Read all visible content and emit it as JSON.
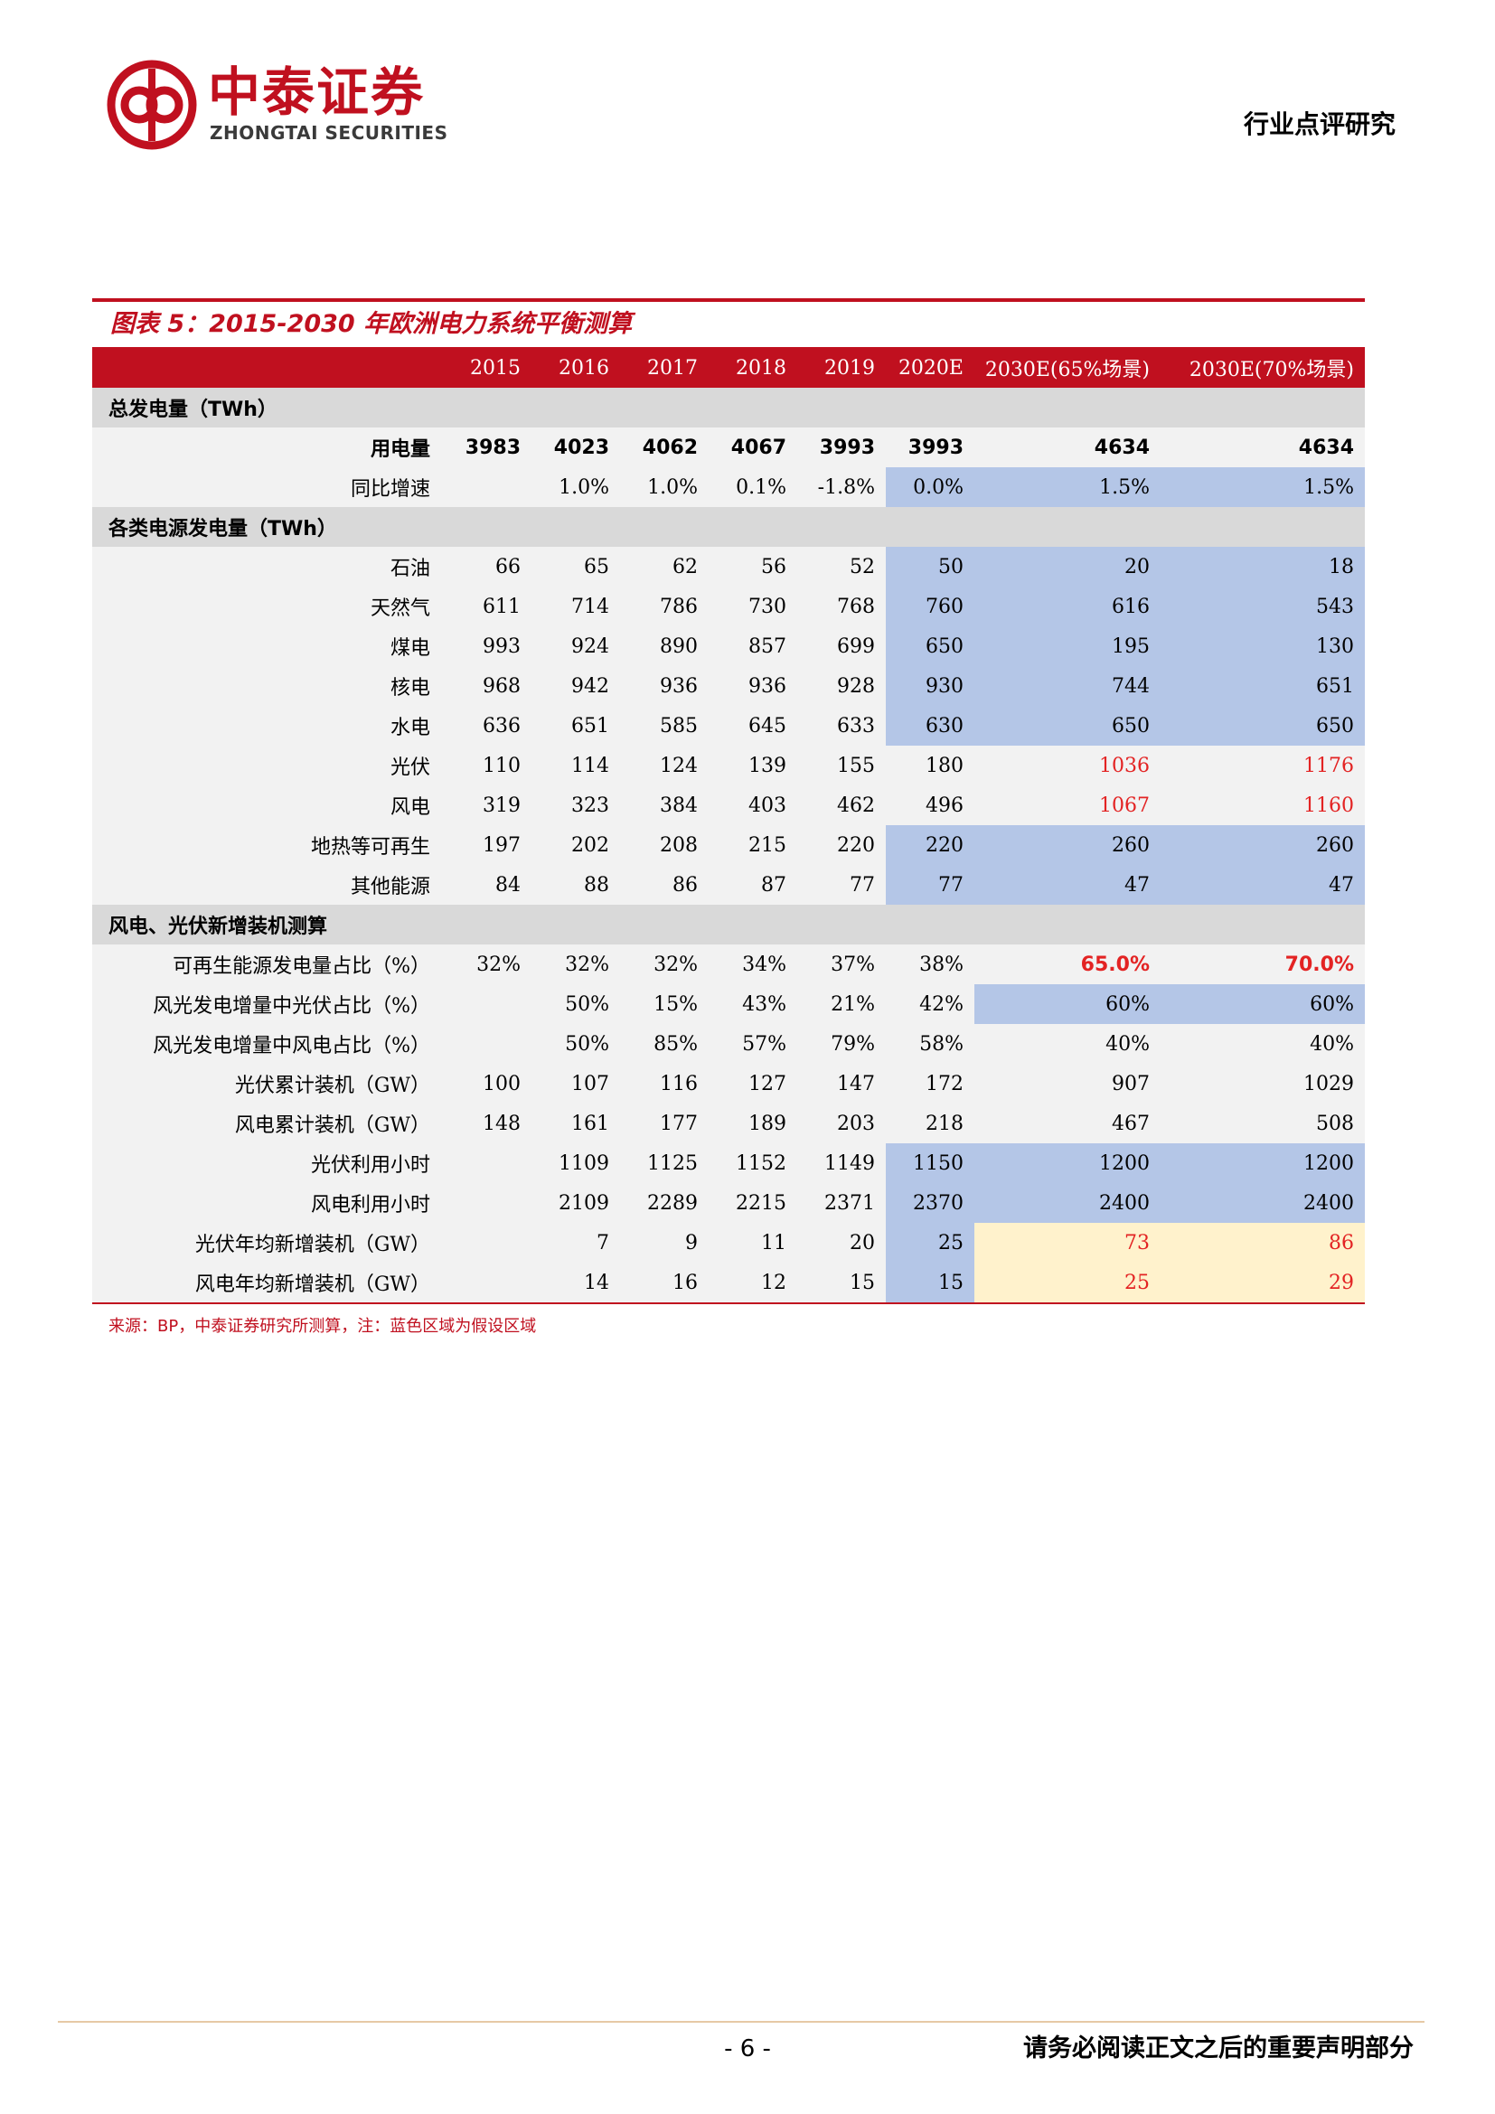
{
  "header": {
    "logo_cn": "中泰证券",
    "logo_en": "ZHONGTAI SECURITIES",
    "doc_type": "行业点评研究"
  },
  "figure": {
    "title": "图表 5：2015-2030 年欧洲电力系统平衡测算",
    "columns": [
      "2015",
      "2016",
      "2017",
      "2018",
      "2019",
      "2020E",
      "2030E(65%场景)",
      "2030E(70%场景)"
    ],
    "sections": [
      {
        "name": "总发电量（TWh）",
        "rows": [
          {
            "label": "用电量",
            "bold": true,
            "values": [
              "3983",
              "4023",
              "4062",
              "4067",
              "3993",
              "3993",
              "4634",
              "4634"
            ]
          },
          {
            "label": "同比增速",
            "values": [
              "",
              "1.0%",
              "1.0%",
              "0.1%",
              "-1.8%",
              "0.0%",
              "1.5%",
              "1.5%"
            ]
          }
        ]
      },
      {
        "name": "各类电源发电量（TWh）",
        "rows": [
          {
            "label": "石油",
            "values": [
              "66",
              "65",
              "62",
              "56",
              "52",
              "50",
              "20",
              "18"
            ]
          },
          {
            "label": "天然气",
            "values": [
              "611",
              "714",
              "786",
              "730",
              "768",
              "760",
              "616",
              "543"
            ]
          },
          {
            "label": "煤电",
            "values": [
              "993",
              "924",
              "890",
              "857",
              "699",
              "650",
              "195",
              "130"
            ]
          },
          {
            "label": "核电",
            "values": [
              "968",
              "942",
              "936",
              "936",
              "928",
              "930",
              "744",
              "651"
            ]
          },
          {
            "label": "水电",
            "values": [
              "636",
              "651",
              "585",
              "645",
              "633",
              "630",
              "650",
              "650"
            ]
          },
          {
            "label": "光伏",
            "values": [
              "110",
              "114",
              "124",
              "139",
              "155",
              "180",
              "1036",
              "1176"
            ]
          },
          {
            "label": "风电",
            "values": [
              "319",
              "323",
              "384",
              "403",
              "462",
              "496",
              "1067",
              "1160"
            ]
          },
          {
            "label": "地热等可再生",
            "values": [
              "197",
              "202",
              "208",
              "215",
              "220",
              "220",
              "260",
              "260"
            ]
          },
          {
            "label": "其他能源",
            "values": [
              "84",
              "88",
              "86",
              "87",
              "77",
              "77",
              "47",
              "47"
            ]
          }
        ]
      },
      {
        "name": "风电、光伏新增装机测算",
        "rows": [
          {
            "label": "可再生能源发电量占比（%）",
            "values": [
              "32%",
              "32%",
              "32%",
              "34%",
              "37%",
              "38%",
              "65.0%",
              "70.0%"
            ]
          },
          {
            "label": "风光发电增量中光伏占比（%）",
            "values": [
              "",
              "50%",
              "15%",
              "43%",
              "21%",
              "42%",
              "60%",
              "60%"
            ]
          },
          {
            "label": "风光发电增量中风电占比（%）",
            "values": [
              "",
              "50%",
              "85%",
              "57%",
              "79%",
              "58%",
              "40%",
              "40%"
            ]
          },
          {
            "label": "光伏累计装机（GW）",
            "values": [
              "100",
              "107",
              "116",
              "127",
              "147",
              "172",
              "907",
              "1029"
            ]
          },
          {
            "label": "风电累计装机（GW）",
            "values": [
              "148",
              "161",
              "177",
              "189",
              "203",
              "218",
              "467",
              "508"
            ]
          },
          {
            "label": "光伏利用小时",
            "values": [
              "",
              "1109",
              "1125",
              "1152",
              "1149",
              "1150",
              "1200",
              "1200"
            ]
          },
          {
            "label": "风电利用小时",
            "values": [
              "",
              "2109",
              "2289",
              "2215",
              "2371",
              "2370",
              "2400",
              "2400"
            ]
          },
          {
            "label": "光伏年均新增装机（GW）",
            "values": [
              "",
              "7",
              "9",
              "11",
              "20",
              "25",
              "73",
              "86"
            ]
          },
          {
            "label": "风电年均新增装机（GW）",
            "values": [
              "",
              "14",
              "16",
              "12",
              "15",
              "15",
              "25",
              "29"
            ]
          }
        ]
      }
    ],
    "source": "来源：BP，中泰证券研究所测算，注：蓝色区域为假设区域",
    "colors": {
      "header_red": "#c0101f",
      "assumption_blue": "#b4c6e7",
      "highlight_yellow": "#fff2cc",
      "text_red": "#e32323"
    }
  },
  "footer": {
    "page_number": "- 6 -",
    "disclaimer": "请务必阅读正文之后的重要声明部分"
  }
}
